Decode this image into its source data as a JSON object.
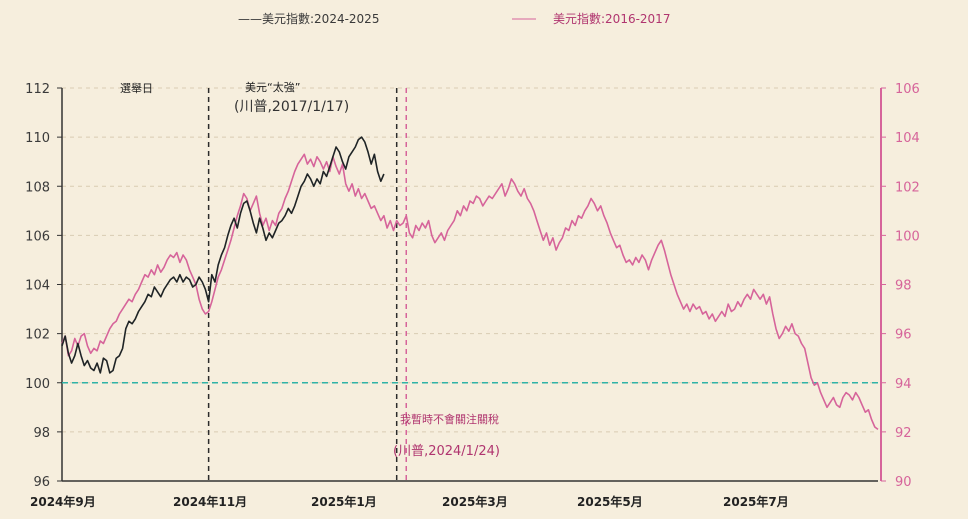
{
  "chart_data": {
    "type": "line",
    "legend": {
      "series_2024": "——美元指數:2024-2025",
      "series_2016": "美元指數:2016-2017",
      "placement": "top"
    },
    "x_axis": {
      "tick_labels": [
        "2024年9月",
        "2024年11月",
        "2025年1月",
        "2025年3月",
        "2025年5月",
        "2025年7月"
      ]
    },
    "y_left": {
      "ylim": [
        96,
        112
      ],
      "ticks": [
        96,
        98,
        100,
        102,
        104,
        106,
        108,
        110,
        112
      ]
    },
    "y_right": {
      "ylim": [
        90,
        106
      ],
      "ticks": [
        90,
        92,
        94,
        96,
        98,
        100,
        102,
        104,
        106
      ]
    },
    "reference_line": {
      "axis": "left",
      "value": 100,
      "color": "#2fb3a6"
    },
    "annotations": {
      "election_day": "選舉日",
      "strong_dollar_1": "美元“太強”",
      "strong_dollar_2": "(川普,2017/1/17)",
      "tariff_1": "我暫時不會關注關稅",
      "tariff_2": "(川普,2024/1/24)"
    },
    "events_x_index": {
      "election_day": 46,
      "trump_2017": 105,
      "trump_2024": 108
    },
    "series": [
      {
        "name": "美元指數:2024-2025",
        "axis": "left",
        "color": "#1f2426",
        "x_start_index": 0,
        "values": [
          101.5,
          101.9,
          101.2,
          100.8,
          101.1,
          101.6,
          101.1,
          100.7,
          100.9,
          100.6,
          100.5,
          100.8,
          100.4,
          101.0,
          100.9,
          100.4,
          100.5,
          101.0,
          101.1,
          101.4,
          102.2,
          102.5,
          102.4,
          102.6,
          102.9,
          103.1,
          103.3,
          103.6,
          103.5,
          103.9,
          103.7,
          103.5,
          103.8,
          104.0,
          104.2,
          104.3,
          104.1,
          104.4,
          104.1,
          104.3,
          104.2,
          103.9,
          104.0,
          104.3,
          104.1,
          103.8,
          103.3,
          104.4,
          104.1,
          104.8,
          105.2,
          105.5,
          106.0,
          106.4,
          106.7,
          106.3,
          106.9,
          107.3,
          107.4,
          107.0,
          106.5,
          106.1,
          106.7,
          106.3,
          105.8,
          106.1,
          105.9,
          106.2,
          106.5,
          106.6,
          106.8,
          107.1,
          106.9,
          107.2,
          107.6,
          108.0,
          108.2,
          108.5,
          108.3,
          108.0,
          108.3,
          108.1,
          108.6,
          108.4,
          108.8,
          109.2,
          109.6,
          109.4,
          109.0,
          108.7,
          109.2,
          109.4,
          109.6,
          109.9,
          110.0,
          109.8,
          109.4,
          108.9,
          109.3,
          108.6,
          108.2,
          108.5
        ],
        "note": "first 102 points only"
      },
      {
        "name": "美元指數:2016-2017",
        "axis": "right",
        "color": "#d6649a",
        "x_start_index": 0,
        "values": [
          95.6,
          95.9,
          95.1,
          95.3,
          95.8,
          95.5,
          95.9,
          96.0,
          95.5,
          95.2,
          95.4,
          95.3,
          95.7,
          95.6,
          95.9,
          96.2,
          96.4,
          96.5,
          96.8,
          97.0,
          97.2,
          97.4,
          97.3,
          97.6,
          97.8,
          98.1,
          98.4,
          98.3,
          98.6,
          98.4,
          98.8,
          98.5,
          98.7,
          99.0,
          99.2,
          99.1,
          99.3,
          98.9,
          99.2,
          99.0,
          98.6,
          98.3,
          98.0,
          97.4,
          97.0,
          96.8,
          96.9,
          97.3,
          97.8,
          98.3,
          98.6,
          99.0,
          99.4,
          99.8,
          100.3,
          100.8,
          101.2,
          101.7,
          101.5,
          101.0,
          101.3,
          101.6,
          100.9,
          100.4,
          100.7,
          100.2,
          100.6,
          100.4,
          100.9,
          101.1,
          101.5,
          101.8,
          102.2,
          102.6,
          102.9,
          103.1,
          103.3,
          102.9,
          103.1,
          102.8,
          103.2,
          103.0,
          102.7,
          103.0,
          102.6,
          103.2,
          102.8,
          102.5,
          102.9,
          102.1,
          101.8,
          102.1,
          101.6,
          101.9,
          101.5,
          101.7,
          101.4,
          101.1,
          101.2,
          100.9,
          100.6,
          100.8,
          100.3,
          100.6,
          100.2,
          100.6,
          100.4,
          100.5,
          100.8,
          100.1,
          99.9,
          100.4,
          100.2,
          100.5,
          100.3,
          100.6,
          100.0,
          99.7,
          99.9,
          100.1,
          99.8,
          100.2,
          100.4,
          100.6,
          101.0,
          100.8,
          101.2,
          101.0,
          101.4,
          101.3,
          101.6,
          101.5,
          101.2,
          101.4,
          101.6,
          101.5,
          101.7,
          101.9,
          102.1,
          101.6,
          101.9,
          102.3,
          102.1,
          101.8,
          101.6,
          101.9,
          101.5,
          101.3,
          101.0,
          100.6,
          100.2,
          99.8,
          100.1,
          99.6,
          99.9,
          99.4,
          99.7,
          99.9,
          100.3,
          100.2,
          100.6,
          100.4,
          100.8,
          100.7,
          101.0,
          101.2,
          101.5,
          101.3,
          101.0,
          101.2,
          100.8,
          100.5,
          100.1,
          99.8,
          99.5,
          99.6,
          99.2,
          98.9,
          99.0,
          98.8,
          99.1,
          98.9,
          99.2,
          99.0,
          98.6,
          99.0,
          99.3,
          99.6,
          99.8,
          99.4,
          98.9,
          98.4,
          98.0,
          97.6,
          97.3,
          97.0,
          97.2,
          96.9,
          97.2,
          97.0,
          97.1,
          96.8,
          96.9,
          96.6,
          96.8,
          96.5,
          96.7,
          96.9,
          96.7,
          97.2,
          96.9,
          97.0,
          97.3,
          97.1,
          97.4,
          97.6,
          97.4,
          97.8,
          97.6,
          97.4,
          97.6,
          97.2,
          97.5,
          96.8,
          96.2,
          95.8,
          96.0,
          96.3,
          96.1,
          96.4,
          96.0,
          95.9,
          95.6,
          95.4,
          94.8,
          94.2,
          93.9,
          94.0,
          93.6,
          93.3,
          93.0,
          93.2,
          93.4,
          93.1,
          93.0,
          93.4,
          93.6,
          93.5,
          93.3,
          93.6,
          93.4,
          93.1,
          92.8,
          92.9,
          92.5,
          92.2,
          92.1
        ]
      }
    ]
  }
}
